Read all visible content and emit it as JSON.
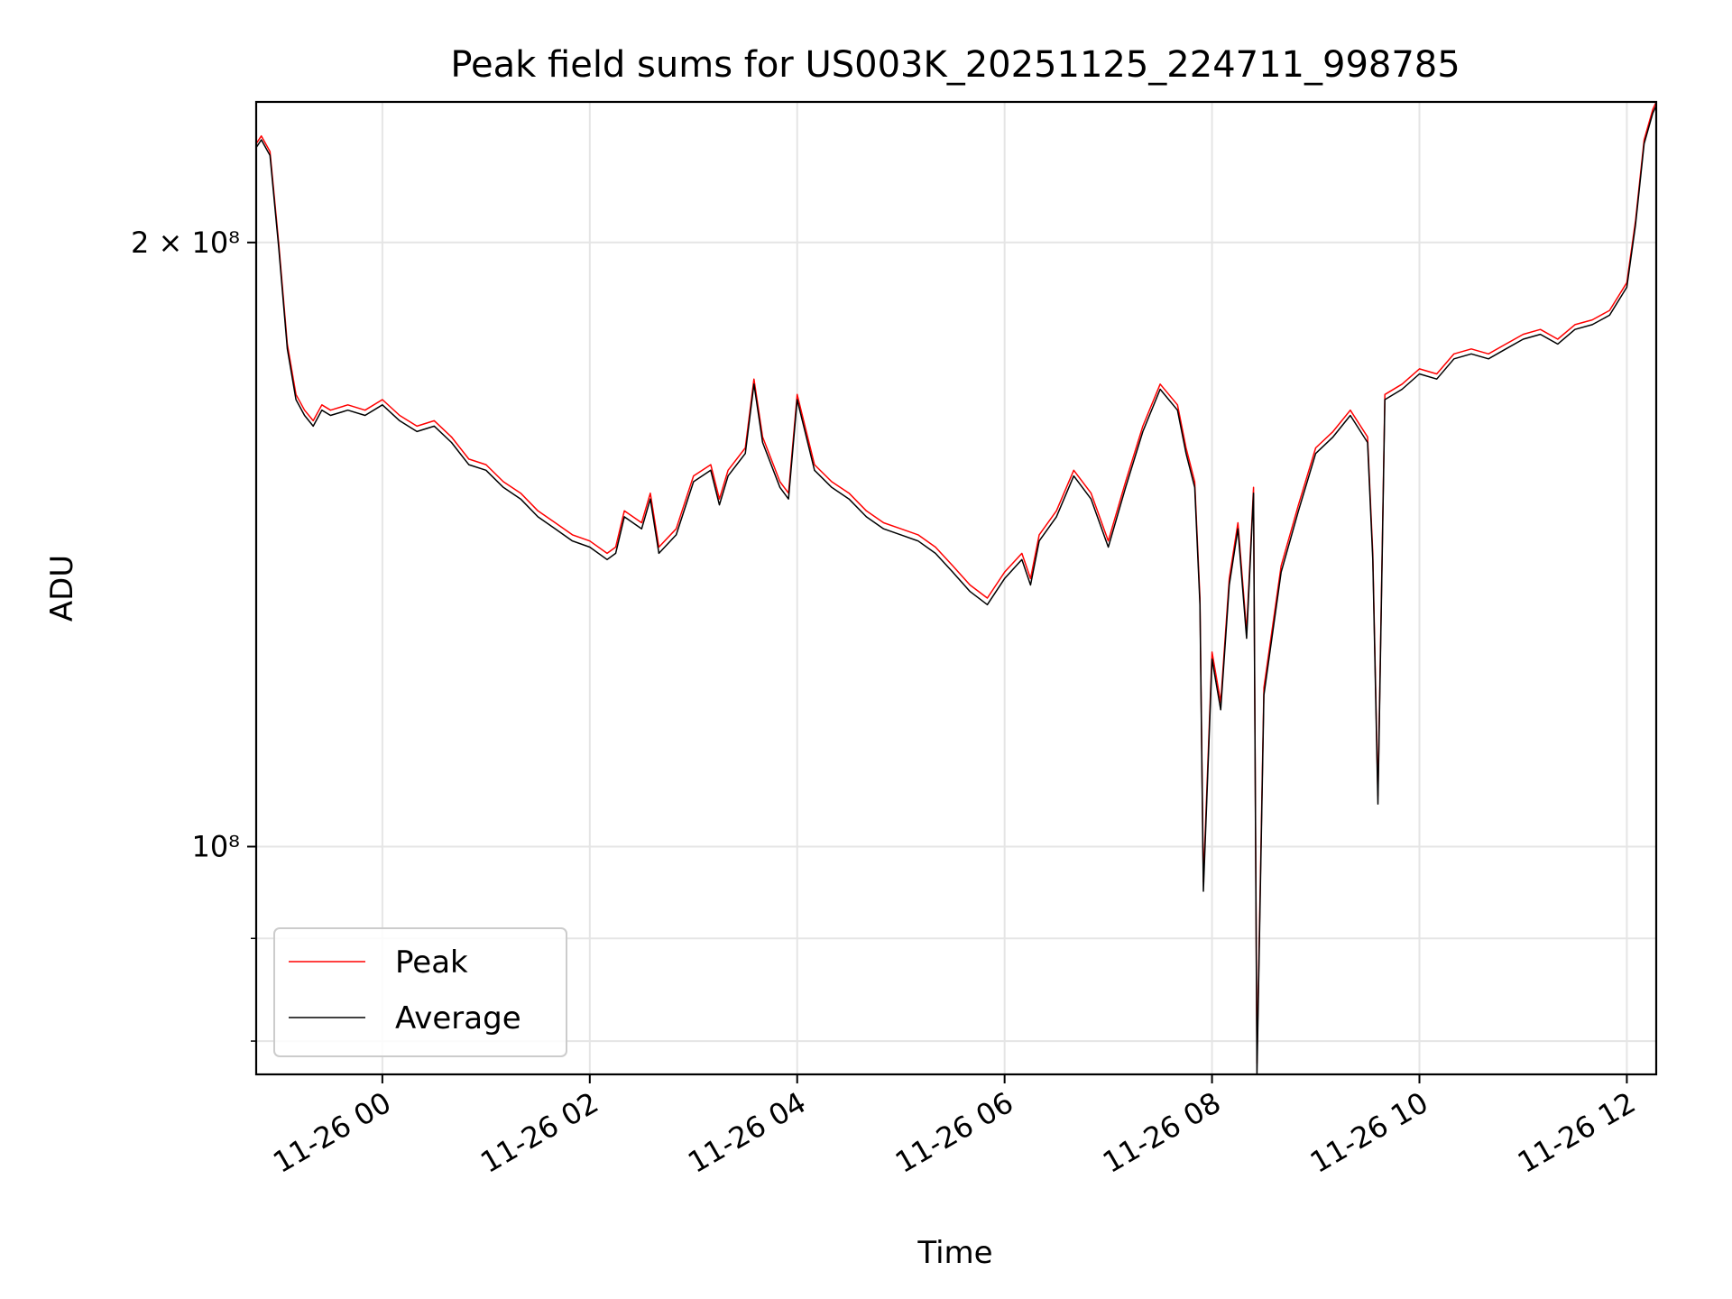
{
  "chart_data": {
    "type": "line",
    "title": "Peak field sums for US003K_20251125_224711_998785",
    "xlabel": "Time",
    "ylabel": "ADU",
    "yscale": "log",
    "grid": true,
    "legend_position": "lower-left",
    "xlim": [
      "11-25 22:47",
      "11-26 12:17"
    ],
    "ylim": [
      77000000,
      235000000
    ],
    "x_ticks": [
      {
        "label": "11-26 00",
        "value": "11-26 00:00"
      },
      {
        "label": "11-26 02",
        "value": "11-26 02:00"
      },
      {
        "label": "11-26 04",
        "value": "11-26 04:00"
      },
      {
        "label": "11-26 06",
        "value": "11-26 06:00"
      },
      {
        "label": "11-26 08",
        "value": "11-26 08:00"
      },
      {
        "label": "11-26 10",
        "value": "11-26 10:00"
      },
      {
        "label": "11-26 12",
        "value": "11-26 12:00"
      }
    ],
    "y_ticks_major": [
      {
        "label": "10⁸",
        "value": 100000000
      },
      {
        "label": "2 × 10⁸",
        "value": 200000000
      }
    ],
    "y_ticks_minor": [
      80000000,
      90000000
    ],
    "x": [
      "11-25 22:47",
      "11-25 22:50",
      "11-25 22:55",
      "11-25 23:00",
      "11-25 23:05",
      "11-25 23:10",
      "11-25 23:15",
      "11-25 23:20",
      "11-25 23:25",
      "11-25 23:30",
      "11-25 23:40",
      "11-25 23:50",
      "11-26 00:00",
      "11-26 00:10",
      "11-26 00:20",
      "11-26 00:30",
      "11-26 00:40",
      "11-26 00:50",
      "11-26 01:00",
      "11-26 01:10",
      "11-26 01:20",
      "11-26 01:30",
      "11-26 01:40",
      "11-26 01:50",
      "11-26 02:00",
      "11-26 02:10",
      "11-26 02:15",
      "11-26 02:20",
      "11-26 02:30",
      "11-26 02:35",
      "11-26 02:40",
      "11-26 02:50",
      "11-26 03:00",
      "11-26 03:10",
      "11-26 03:15",
      "11-26 03:20",
      "11-26 03:30",
      "11-26 03:35",
      "11-26 03:40",
      "11-26 03:50",
      "11-26 03:55",
      "11-26 04:00",
      "11-26 04:10",
      "11-26 04:20",
      "11-26 04:30",
      "11-26 04:40",
      "11-26 04:50",
      "11-26 05:00",
      "11-26 05:10",
      "11-26 05:20",
      "11-26 05:30",
      "11-26 05:40",
      "11-26 05:50",
      "11-26 06:00",
      "11-26 06:10",
      "11-26 06:15",
      "11-26 06:20",
      "11-26 06:30",
      "11-26 06:40",
      "11-26 06:50",
      "11-26 07:00",
      "11-26 07:10",
      "11-26 07:20",
      "11-26 07:30",
      "11-26 07:40",
      "11-26 07:45",
      "11-26 07:50",
      "11-26 07:53",
      "11-26 07:55",
      "11-26 08:00",
      "11-26 08:05",
      "11-26 08:10",
      "11-26 08:15",
      "11-26 08:20",
      "11-26 08:24",
      "11-26 08:26",
      "11-26 08:30",
      "11-26 08:40",
      "11-26 08:50",
      "11-26 09:00",
      "11-26 09:10",
      "11-26 09:20",
      "11-26 09:30",
      "11-26 09:33",
      "11-26 09:36",
      "11-26 09:40",
      "11-26 09:50",
      "11-26 10:00",
      "11-26 10:10",
      "11-26 10:20",
      "11-26 10:30",
      "11-26 10:40",
      "11-26 10:50",
      "11-26 11:00",
      "11-26 11:10",
      "11-26 11:20",
      "11-26 11:30",
      "11-26 11:40",
      "11-26 11:50",
      "11-26 12:00",
      "11-26 12:05",
      "11-26 12:10",
      "11-26 12:15",
      "11-26 12:17"
    ],
    "series": [
      {
        "name": "Peak",
        "color": "#ff0000",
        "values": [
          224000000,
          226000000,
          222000000,
          200000000,
          178000000,
          168000000,
          165000000,
          163000000,
          166000000,
          165000000,
          166000000,
          165000000,
          167000000,
          164000000,
          162000000,
          163000000,
          160000000,
          156000000,
          155000000,
          152000000,
          150000000,
          147000000,
          145000000,
          143000000,
          142000000,
          140000000,
          141000000,
          147000000,
          145000000,
          150000000,
          141000000,
          144000000,
          153000000,
          155000000,
          149000000,
          154000000,
          158000000,
          171000000,
          160000000,
          152000000,
          150000000,
          168000000,
          155000000,
          152000000,
          150000000,
          147000000,
          145000000,
          144000000,
          143000000,
          141000000,
          138000000,
          135000000,
          133000000,
          137000000,
          140000000,
          136000000,
          143000000,
          147000000,
          154000000,
          150000000,
          142000000,
          152000000,
          162000000,
          170000000,
          166000000,
          158000000,
          152000000,
          133000000,
          96000000,
          125000000,
          118000000,
          136000000,
          145000000,
          128000000,
          151000000,
          78000000,
          120000000,
          138000000,
          148000000,
          158000000,
          161000000,
          165000000,
          160000000,
          140000000,
          106000000,
          168000000,
          170000000,
          173000000,
          172000000,
          176000000,
          177000000,
          176000000,
          178000000,
          180000000,
          181000000,
          179000000,
          182000000,
          183000000,
          185000000,
          191000000,
          205000000,
          225000000,
          233000000,
          235000000
        ]
      },
      {
        "name": "Average",
        "color": "#000000",
        "values": [
          223000000,
          225000000,
          221000000,
          199000000,
          177000000,
          167000000,
          164000000,
          162000000,
          165000000,
          164000000,
          165000000,
          164000000,
          166000000,
          163000000,
          161000000,
          162000000,
          159000000,
          155000000,
          154000000,
          151000000,
          149000000,
          146000000,
          144000000,
          142000000,
          141000000,
          139000000,
          140000000,
          146000000,
          144000000,
          149000000,
          140000000,
          143000000,
          152000000,
          154000000,
          148000000,
          153000000,
          157000000,
          170000000,
          159000000,
          151000000,
          149000000,
          167000000,
          154000000,
          151000000,
          149000000,
          146000000,
          144000000,
          143000000,
          142000000,
          140000000,
          137000000,
          134000000,
          132000000,
          136000000,
          139000000,
          135000000,
          142000000,
          146000000,
          153000000,
          149000000,
          141000000,
          151000000,
          161000000,
          169000000,
          165000000,
          157000000,
          151000000,
          132000000,
          95000000,
          124000000,
          117000000,
          135000000,
          144000000,
          127000000,
          150000000,
          77000000,
          119000000,
          137000000,
          147000000,
          157000000,
          160000000,
          164000000,
          159000000,
          139000000,
          105000000,
          167000000,
          169000000,
          172000000,
          171000000,
          175000000,
          176000000,
          175000000,
          177000000,
          179000000,
          180000000,
          178000000,
          181000000,
          182000000,
          184000000,
          190000000,
          204000000,
          224000000,
          232000000,
          234000000
        ]
      }
    ]
  }
}
